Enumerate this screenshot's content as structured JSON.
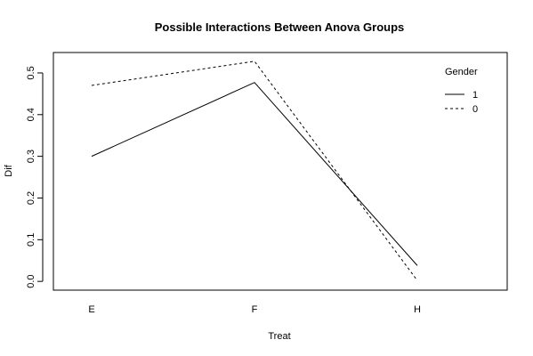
{
  "chart_data": {
    "type": "line",
    "title": "Possible Interactions Between Anova Groups",
    "xlabel": "Treat",
    "ylabel": "Dif",
    "categories": [
      "E",
      "F",
      "H"
    ],
    "yticks": [
      "0.0",
      "0.1",
      "0.2",
      "0.3",
      "0.4",
      "0.5"
    ],
    "ylim": [
      -0.021,
      0.549
    ],
    "legend": {
      "title": "Gender",
      "placement": "top-right"
    },
    "series": [
      {
        "name": "1",
        "values": [
          0.3,
          0.477,
          0.038
        ],
        "line_style": "solid",
        "color": "#000000"
      },
      {
        "name": "0",
        "values": [
          0.47,
          0.528,
          0.002
        ],
        "line_style": "dashed",
        "color": "#000000"
      }
    ],
    "grid": false
  }
}
